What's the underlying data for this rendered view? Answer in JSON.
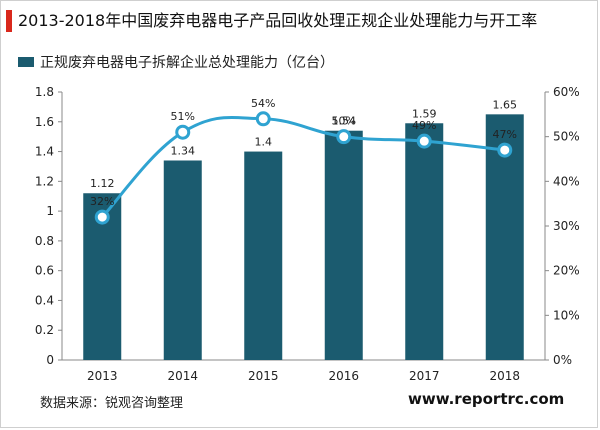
{
  "title": "2013-2018年中国废弃电器电子产品回收处理正规企业处理能力与开工率",
  "source": "数据来源：锐观咨询整理",
  "website": "www.reportrc.com",
  "colors": {
    "bar": "#1b5b6f",
    "line": "#2fa3d1",
    "accent": "#d9281c"
  },
  "chart_data": {
    "type": "bar",
    "categories": [
      "2013",
      "2014",
      "2015",
      "2016",
      "2017",
      "2018"
    ],
    "series": [
      {
        "name": "正规废弃电器电子拆解企业总处理能力（亿台）",
        "type": "bar",
        "axis": "left",
        "values": [
          1.12,
          1.34,
          1.4,
          1.54,
          1.59,
          1.65
        ],
        "labels": [
          "1.12",
          "1.34",
          "1.4",
          "1.54",
          "1.59",
          "1.65"
        ]
      },
      {
        "type": "line",
        "axis": "right",
        "values": [
          32,
          51,
          54,
          50,
          49,
          47
        ],
        "labels": [
          "32%",
          "51%",
          "54%",
          "50%",
          "49%",
          "47%"
        ]
      }
    ],
    "y_left": {
      "min": 0,
      "max": 1.8,
      "ticks": [
        "0",
        "0.2",
        "0.4",
        "0.6",
        "0.8",
        "1",
        "1.2",
        "1.4",
        "1.6",
        "1.8"
      ]
    },
    "y_right": {
      "min": 0,
      "max": 60,
      "ticks": [
        "0%",
        "10%",
        "20%",
        "30%",
        "40%",
        "50%",
        "60%"
      ]
    },
    "legend_position": "top-left",
    "grid": false
  }
}
